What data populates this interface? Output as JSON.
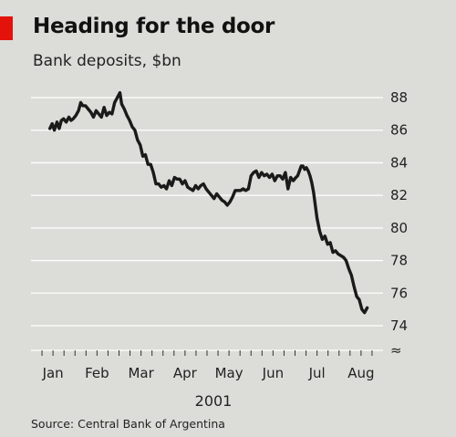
{
  "title": "Heading for the door",
  "subtitle": "Bank deposits, $bn",
  "source": "Source: Central Bank of Argentina",
  "year_label": "2001",
  "axis_break_symbol": "≈",
  "colors": {
    "accent": "#e3120b",
    "line": "#1a1a1a",
    "background": "#dcdcd8",
    "grid": "#ffffff"
  },
  "chart_data": {
    "type": "line",
    "title": "Heading for the door",
    "subtitle": "Bank deposits, $bn",
    "xlabel": "2001",
    "ylabel": "",
    "ylim": [
      73,
      89
    ],
    "y_ticks": [
      74,
      76,
      78,
      80,
      82,
      84,
      86,
      88
    ],
    "y_axis_side": "right",
    "x_ticks": [
      "Jan",
      "Feb",
      "Mar",
      "Apr",
      "May",
      "Jun",
      "Jul",
      "Aug"
    ],
    "x_tick_pos": [
      1,
      2,
      3,
      4,
      5,
      6,
      7,
      8
    ],
    "xlim": [
      0.5,
      8.5
    ],
    "grid": "horizontal",
    "series": [
      {
        "color": "#1a1a1a",
        "x": [
          0.93,
          0.98,
          1.03,
          1.09,
          1.14,
          1.19,
          1.24,
          1.3,
          1.36,
          1.41,
          1.46,
          1.52,
          1.58,
          1.63,
          1.68,
          1.74,
          1.8,
          1.86,
          1.92,
          1.98,
          2.04,
          2.1,
          2.16,
          2.22,
          2.28,
          2.34,
          2.4,
          2.46,
          2.52,
          2.56,
          2.62,
          2.68,
          2.74,
          2.8,
          2.86,
          2.92,
          2.98,
          3.04,
          3.1,
          3.16,
          3.22,
          3.28,
          3.34,
          3.4,
          3.46,
          3.52,
          3.58,
          3.64,
          3.7,
          3.76,
          3.82,
          3.88,
          3.94,
          4.0,
          4.06,
          4.12,
          4.18,
          4.24,
          4.3,
          4.36,
          4.42,
          4.48,
          4.54,
          4.6,
          4.66,
          4.72,
          4.78,
          4.84,
          4.9,
          4.96,
          5.02,
          5.08,
          5.14,
          5.2,
          5.26,
          5.32,
          5.38,
          5.44,
          5.5,
          5.56,
          5.62,
          5.68,
          5.74,
          5.8,
          5.86,
          5.92,
          5.98,
          6.04,
          6.1,
          6.16,
          6.22,
          6.28,
          6.34,
          6.4,
          6.46,
          6.52,
          6.56,
          6.6,
          6.64,
          6.68,
          6.72,
          6.76,
          6.8,
          6.84,
          6.88,
          6.92,
          6.96,
          7.0,
          7.06,
          7.12,
          7.18,
          7.24,
          7.3,
          7.36,
          7.42,
          7.48,
          7.54,
          7.6,
          7.66,
          7.72,
          7.78,
          7.84,
          7.9,
          7.96,
          8.02,
          8.08,
          8.14
        ],
        "values": [
          86.1,
          86.4,
          86.0,
          86.5,
          86.1,
          86.6,
          86.7,
          86.5,
          86.8,
          86.6,
          86.7,
          86.9,
          87.2,
          87.7,
          87.5,
          87.5,
          87.3,
          87.1,
          86.8,
          87.2,
          87.0,
          86.8,
          87.4,
          86.9,
          87.1,
          87.0,
          87.7,
          88.0,
          88.3,
          87.6,
          87.3,
          86.9,
          86.6,
          86.2,
          86.0,
          85.4,
          85.1,
          84.4,
          84.5,
          83.9,
          83.9,
          83.4,
          82.7,
          82.7,
          82.5,
          82.6,
          82.4,
          82.9,
          82.6,
          83.1,
          83.0,
          83.0,
          82.7,
          82.9,
          82.5,
          82.4,
          82.3,
          82.6,
          82.4,
          82.6,
          82.7,
          82.4,
          82.2,
          82.0,
          81.8,
          82.1,
          81.9,
          81.7,
          81.6,
          81.4,
          81.6,
          81.9,
          82.3,
          82.3,
          82.3,
          82.4,
          82.3,
          82.4,
          83.2,
          83.4,
          83.5,
          83.1,
          83.4,
          83.2,
          83.3,
          83.1,
          83.3,
          82.9,
          83.2,
          83.2,
          83.0,
          83.4,
          82.4,
          83.1,
          82.9,
          83.1,
          83.2,
          83.5,
          83.8,
          83.8,
          83.6,
          83.7,
          83.5,
          83.2,
          82.8,
          82.2,
          81.4,
          80.6,
          79.8,
          79.3,
          79.5,
          79.0,
          79.1,
          78.5,
          78.6,
          78.4,
          78.3,
          78.2,
          78.0,
          77.5,
          77.1,
          76.4,
          75.8,
          75.6,
          75.0,
          74.8,
          75.1
        ]
      }
    ]
  }
}
